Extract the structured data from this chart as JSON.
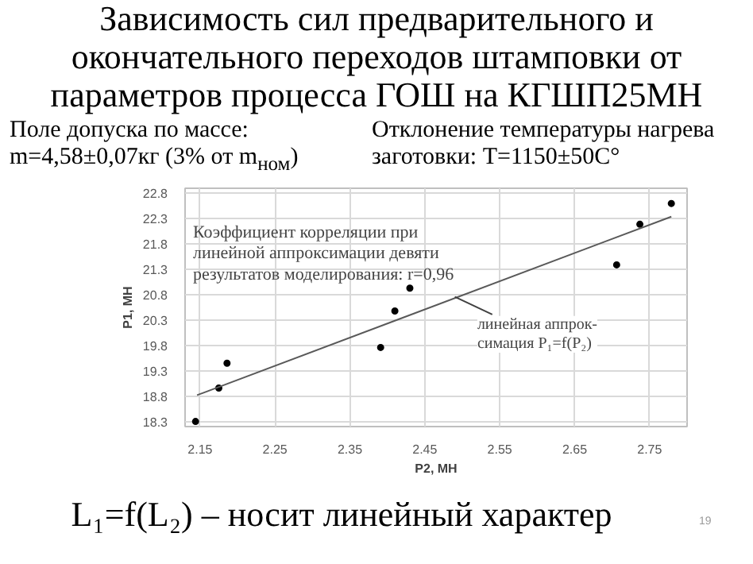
{
  "chart_data": {
    "type": "scatter",
    "title": "Зависимость сил предварительного и окончательного переходов штамповки от параметров процесса ГОШ на КГШП25МН",
    "xlabel": "P2, МН",
    "ylabel": "P1, МН",
    "series": [
      {
        "marker": "circle",
        "color": "#000000",
        "x": [
          2.144,
          2.175,
          2.186,
          2.391,
          2.41,
          2.43,
          2.706,
          2.737,
          2.779
        ],
        "values": [
          18.3,
          18.96,
          19.45,
          19.76,
          20.48,
          20.93,
          21.39,
          22.19,
          22.6
        ]
      },
      {
        "type": "line",
        "color": "#595959",
        "x": [
          2.146,
          2.779
        ],
        "values": [
          18.82,
          22.34
        ]
      }
    ],
    "xlim": [
      2.13,
      2.8
    ],
    "ylim": [
      18.2,
      22.9
    ],
    "xticks": [
      2.15,
      2.25,
      2.35,
      2.45,
      2.55,
      2.65,
      2.75
    ],
    "yticks": [
      18.3,
      18.8,
      19.3,
      19.8,
      20.3,
      20.8,
      21.3,
      21.8,
      22.3,
      22.8
    ],
    "grid": true,
    "annotations": [
      "Коэффициент корреляции при\nлинейной аппроксимации девяти\nрезультатов моделирования: r=0,96",
      {
        "text": "линейная аппрок-\nсимация P₁=f(P₂)",
        "x": 2.49,
        "y": 20.76
      },
      "Поле допуска по массе:\nm=4,58±0,07кг (3% от m$_{ном}$)",
      "Отклонение температуры нагрева\nзаготовки: T=1150±50C°",
      "L₁=f(L₂) – носит линейный характер",
      "19"
    ]
  }
}
